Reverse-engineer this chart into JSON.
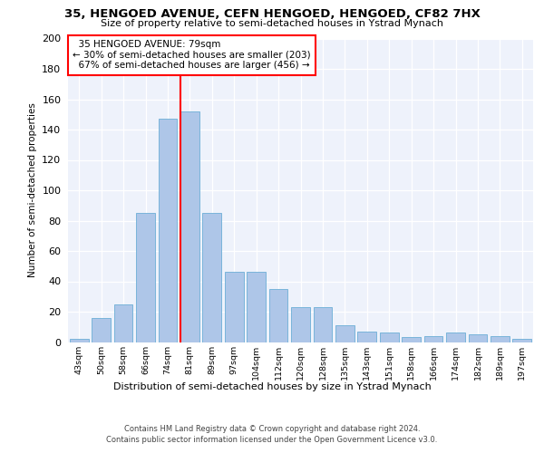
{
  "title": "35, HENGOED AVENUE, CEFN HENGOED, HENGOED, CF82 7HX",
  "subtitle": "Size of property relative to semi-detached houses in Ystrad Mynach",
  "xlabel": "Distribution of semi-detached houses by size in Ystrad Mynach",
  "ylabel": "Number of semi-detached properties",
  "categories": [
    "43sqm",
    "50sqm",
    "58sqm",
    "66sqm",
    "74sqm",
    "81sqm",
    "89sqm",
    "97sqm",
    "104sqm",
    "112sqm",
    "120sqm",
    "128sqm",
    "135sqm",
    "143sqm",
    "151sqm",
    "158sqm",
    "166sqm",
    "174sqm",
    "182sqm",
    "189sqm",
    "197sqm"
  ],
  "values": [
    2,
    16,
    25,
    85,
    147,
    152,
    85,
    46,
    46,
    35,
    23,
    23,
    11,
    7,
    6,
    3,
    4,
    6,
    5,
    4,
    2
  ],
  "bar_color": "#aec6e8",
  "bar_edge_color": "#6baed6",
  "red_line_bar_index": 5,
  "property_label": "35 HENGOED AVENUE: 79sqm",
  "smaller_pct": 30,
  "smaller_count": 203,
  "larger_pct": 67,
  "larger_count": 456,
  "ylim": [
    0,
    200
  ],
  "yticks": [
    0,
    20,
    40,
    60,
    80,
    100,
    120,
    140,
    160,
    180,
    200
  ],
  "background_color": "#eef2fb",
  "grid_color": "#ffffff",
  "footer_line1": "Contains HM Land Registry data © Crown copyright and database right 2024.",
  "footer_line2": "Contains public sector information licensed under the Open Government Licence v3.0."
}
